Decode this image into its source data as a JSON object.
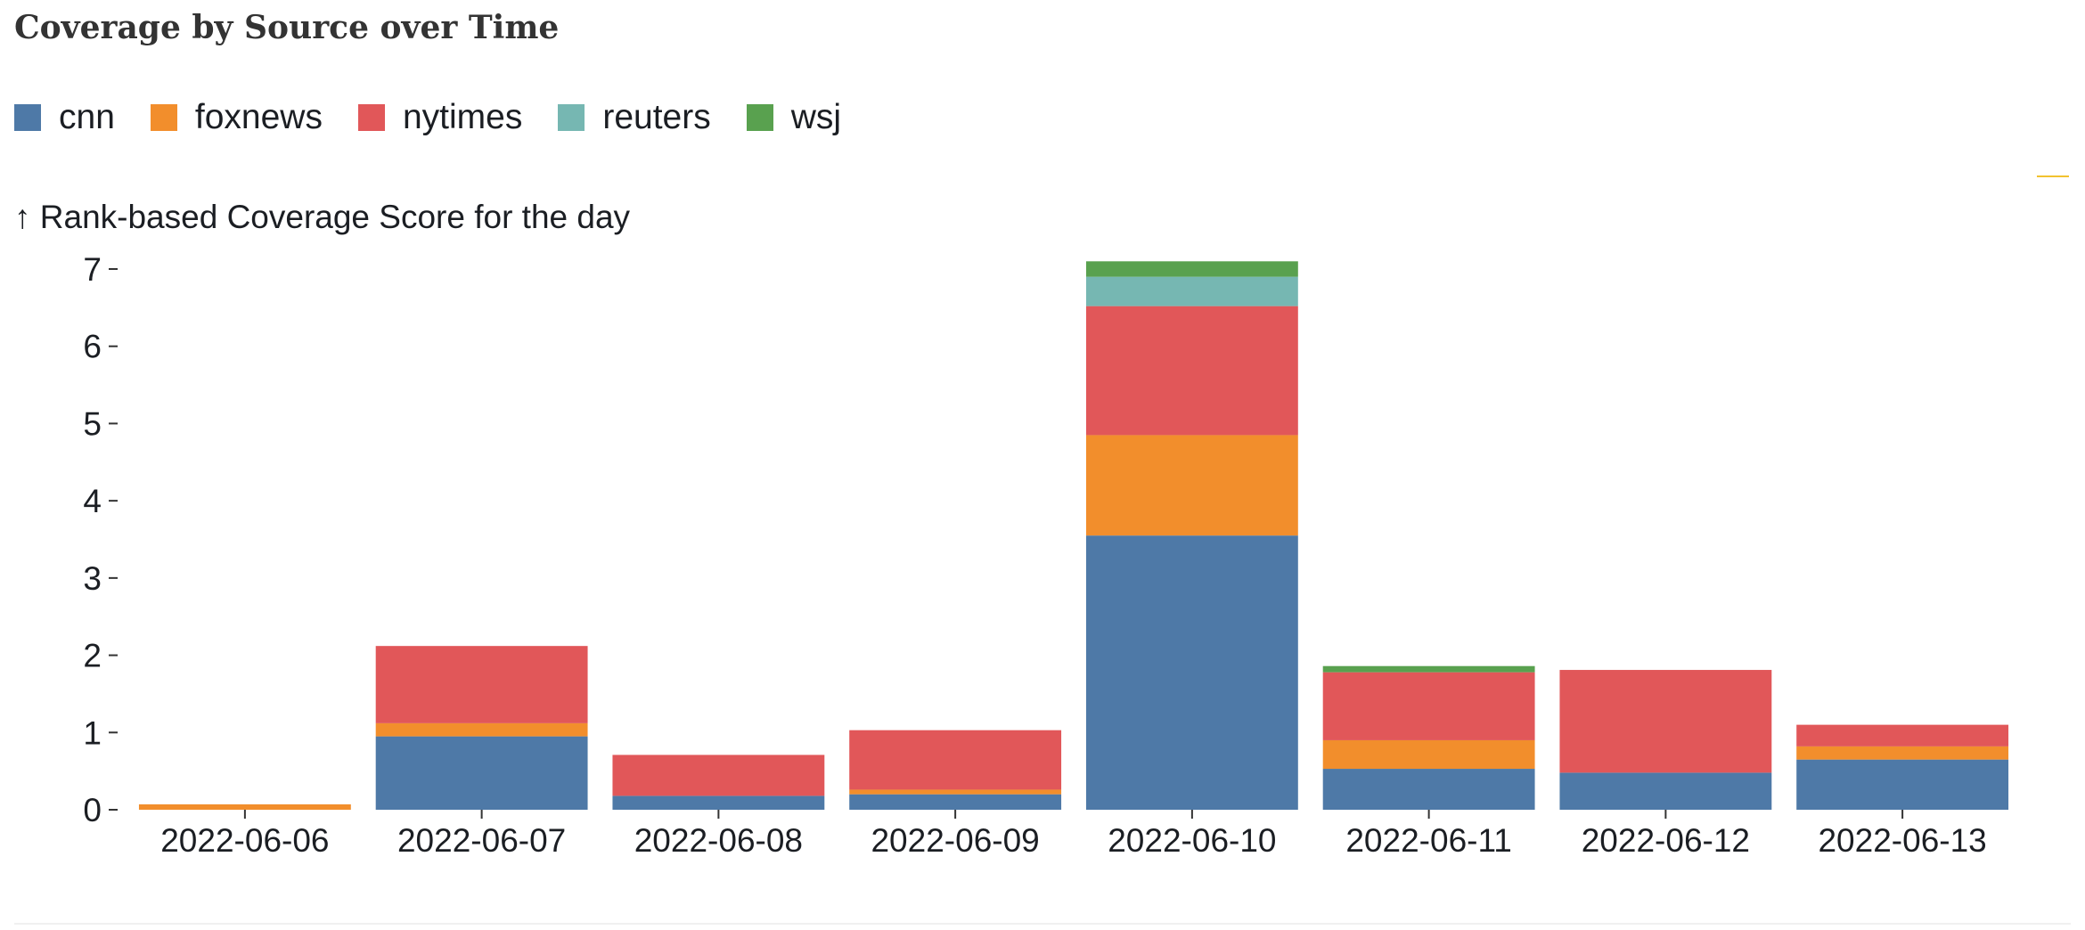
{
  "header": {
    "title": "Coverage by Source over Time"
  },
  "chart_data": {
    "type": "bar",
    "stacked": true,
    "ylabel": "↑ Rank-based Coverage Score for the day",
    "xlabel": "",
    "ylim": [
      0,
      7.1
    ],
    "yticks": [
      0,
      1,
      2,
      3,
      4,
      5,
      6,
      7
    ],
    "grid": false,
    "legend_position": "top-left",
    "categories": [
      "2022-06-06",
      "2022-06-07",
      "2022-06-08",
      "2022-06-09",
      "2022-06-10",
      "2022-06-11",
      "2022-06-12",
      "2022-06-13"
    ],
    "series": [
      {
        "name": "cnn",
        "color": "#4e79a7",
        "values": [
          0,
          0.95,
          0.18,
          0.2,
          3.55,
          0.53,
          0.48,
          0.65
        ]
      },
      {
        "name": "foxnews",
        "color": "#f28e2c",
        "values": [
          0.07,
          0.17,
          0,
          0.06,
          1.3,
          0.37,
          0,
          0.17
        ]
      },
      {
        "name": "nytimes",
        "color": "#e15759",
        "values": [
          0,
          1.0,
          0.53,
          0.77,
          1.67,
          0.88,
          1.33,
          0.28
        ]
      },
      {
        "name": "reuters",
        "color": "#76b7b2",
        "values": [
          0,
          0,
          0,
          0,
          0.38,
          0,
          0,
          0
        ]
      },
      {
        "name": "wsj",
        "color": "#59a14f",
        "values": [
          0,
          0,
          0,
          0,
          0.2,
          0.08,
          0,
          0
        ]
      }
    ]
  }
}
